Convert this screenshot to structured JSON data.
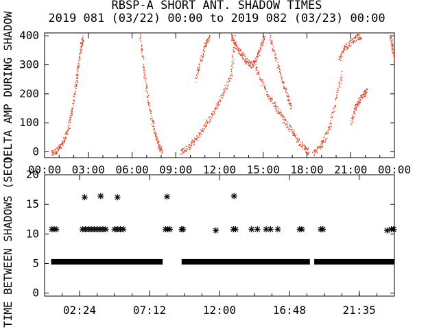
{
  "colors": {
    "background": "#ffffff",
    "axes": "#000000",
    "top_points": "#e8381a",
    "bottom_points": "#000000"
  },
  "chart_data": [
    {
      "type": "scatter",
      "title": "RBSP-A SHORT ANT. SHADOW TIMES",
      "subtitle": "2019 081 (03/22) 00:00 to 2019 082 (03/23) 00:00",
      "ylabel": "DELTA AMP DURING SHADOW",
      "xlabel": "",
      "xlim": [
        0,
        24
      ],
      "ylim": [
        -20,
        410
      ],
      "xtick_labels": [
        "00:00",
        "03:00",
        "06:00",
        "09:00",
        "12:00",
        "15:00",
        "18:00",
        "21:00",
        "00:00"
      ],
      "ytick_labels": [
        "0",
        "100",
        "200",
        "300",
        "400"
      ],
      "marker": "dot",
      "grid": false,
      "branches": [
        {
          "hours": [
            0.45,
            0.8,
            1.1,
            1.4,
            1.7,
            1.95,
            2.15,
            2.3,
            2.5,
            2.62
          ],
          "values": [
            -5,
            5,
            20,
            50,
            100,
            170,
            240,
            300,
            370,
            400
          ]
        },
        {
          "hours": [
            6.55,
            6.75,
            7.0,
            7.3,
            7.6,
            7.85,
            8.05
          ],
          "values": [
            400,
            300,
            200,
            120,
            60,
            20,
            5
          ]
        },
        {
          "hours": [
            9.3,
            9.8,
            10.3,
            10.8,
            11.3,
            11.8,
            12.3,
            12.8,
            13.05
          ],
          "values": [
            0,
            15,
            40,
            75,
            115,
            160,
            210,
            270,
            400
          ]
        },
        {
          "hours": [
            10.35,
            10.7,
            11.0,
            11.3
          ],
          "values": [
            250,
            320,
            370,
            400
          ]
        },
        {
          "hours": [
            12.8,
            13.0,
            13.3,
            13.6,
            13.9,
            14.2,
            14.5,
            14.8,
            15.1
          ],
          "values": [
            400,
            380,
            350,
            330,
            310,
            300,
            320,
            360,
            400
          ]
        },
        {
          "hours": [
            14.4,
            14.9,
            15.4,
            15.9,
            16.4,
            16.9,
            17.3,
            17.8,
            18.1
          ],
          "values": [
            300,
            240,
            190,
            150,
            110,
            75,
            45,
            15,
            0
          ]
        },
        {
          "hours": [
            15.4,
            15.8,
            16.2,
            16.6,
            16.9
          ],
          "values": [
            400,
            330,
            260,
            200,
            150
          ]
        },
        {
          "hours": [
            18.4,
            18.8,
            19.2,
            19.6,
            20.0,
            20.4
          ],
          "values": [
            -5,
            15,
            45,
            100,
            190,
            280
          ]
        },
        {
          "hours": [
            20.2,
            20.6,
            21.0,
            21.4,
            21.7
          ],
          "values": [
            320,
            360,
            380,
            395,
            400
          ]
        },
        {
          "hours": [
            21.0,
            21.3,
            21.6,
            21.9,
            22.1
          ],
          "values": [
            100,
            150,
            180,
            200,
            210
          ]
        },
        {
          "hours": [
            23.7,
            23.85,
            24.0
          ],
          "values": [
            400,
            360,
            320
          ]
        }
      ]
    },
    {
      "type": "scatter",
      "title": "",
      "ylabel": "TIME BETWEEN SHADOWS (SEC)",
      "xlabel": "",
      "xlim": [
        0,
        24
      ],
      "ylim": [
        -0.5,
        20
      ],
      "xtick_labels": [
        "02:24",
        "07:12",
        "12:00",
        "16:48",
        "21:35"
      ],
      "ytick_labels": [
        "0",
        "5",
        "10",
        "15",
        "20"
      ],
      "marker": "asterisk",
      "grid": false,
      "baseline": {
        "value": 5.3,
        "segments": [
          [
            0.45,
            8.1
          ],
          [
            9.4,
            18.2
          ],
          [
            18.5,
            24.0
          ]
        ]
      },
      "points": [
        {
          "hour": 0.5,
          "value": 10.8
        },
        {
          "hour": 0.65,
          "value": 10.8
        },
        {
          "hour": 0.8,
          "value": 10.8
        },
        {
          "hour": 2.6,
          "value": 10.8
        },
        {
          "hour": 2.8,
          "value": 10.8
        },
        {
          "hour": 3.0,
          "value": 10.8
        },
        {
          "hour": 3.2,
          "value": 10.8
        },
        {
          "hour": 3.4,
          "value": 10.8
        },
        {
          "hour": 3.6,
          "value": 10.8
        },
        {
          "hour": 3.8,
          "value": 10.8
        },
        {
          "hour": 4.0,
          "value": 10.8
        },
        {
          "hour": 4.2,
          "value": 10.8
        },
        {
          "hour": 4.8,
          "value": 10.8
        },
        {
          "hour": 5.0,
          "value": 10.8
        },
        {
          "hour": 5.2,
          "value": 10.8
        },
        {
          "hour": 5.4,
          "value": 10.8
        },
        {
          "hour": 8.3,
          "value": 10.8
        },
        {
          "hour": 8.45,
          "value": 10.8
        },
        {
          "hour": 8.6,
          "value": 10.8
        },
        {
          "hour": 9.4,
          "value": 10.8
        },
        {
          "hour": 9.5,
          "value": 10.8
        },
        {
          "hour": 11.75,
          "value": 10.6
        },
        {
          "hour": 12.95,
          "value": 10.8
        },
        {
          "hour": 13.1,
          "value": 10.8
        },
        {
          "hour": 14.2,
          "value": 10.8
        },
        {
          "hour": 14.6,
          "value": 10.8
        },
        {
          "hour": 15.2,
          "value": 10.8
        },
        {
          "hour": 15.5,
          "value": 10.8
        },
        {
          "hour": 16.0,
          "value": 10.8
        },
        {
          "hour": 17.5,
          "value": 10.8
        },
        {
          "hour": 17.65,
          "value": 10.8
        },
        {
          "hour": 18.95,
          "value": 10.8
        },
        {
          "hour": 19.1,
          "value": 10.8
        },
        {
          "hour": 23.5,
          "value": 10.6
        },
        {
          "hour": 23.8,
          "value": 10.8
        },
        {
          "hour": 23.95,
          "value": 10.8
        },
        {
          "hour": 2.75,
          "value": 16.2
        },
        {
          "hour": 3.85,
          "value": 16.4
        },
        {
          "hour": 5.0,
          "value": 16.2
        },
        {
          "hour": 8.4,
          "value": 16.3
        },
        {
          "hour": 13.0,
          "value": 16.4
        }
      ]
    }
  ]
}
